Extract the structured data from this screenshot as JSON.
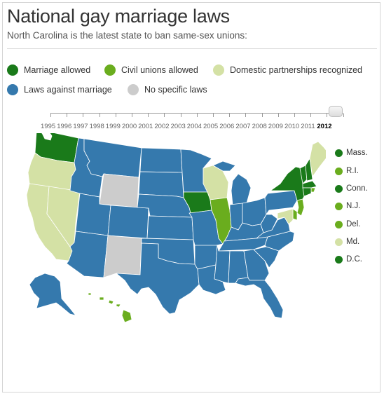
{
  "header": {
    "title": "National gay marriage laws",
    "subtitle": "North Carolina is the latest state to ban same-sex unions:"
  },
  "colors": {
    "marriage": "#1a7a1a",
    "civil": "#6aad1e",
    "domestic": "#d4e1a5",
    "against": "#3579ad",
    "none": "#cccccc"
  },
  "legend": [
    {
      "label": "Marriage allowed",
      "category": "marriage"
    },
    {
      "label": "Civil unions allowed",
      "category": "civil"
    },
    {
      "label": "Domestic partnerships recognized",
      "category": "domestic"
    },
    {
      "label": "Laws against marriage",
      "category": "against"
    },
    {
      "label": "No specific laws",
      "category": "none"
    }
  ],
  "timeline": {
    "years": [
      "1995",
      "1996",
      "1997",
      "1998",
      "1999",
      "2000",
      "2001",
      "2002",
      "2003",
      "2004",
      "2005",
      "2006",
      "2007",
      "2008",
      "2009",
      "2010",
      "2011",
      "2012"
    ],
    "selected": "2012"
  },
  "east_states": [
    {
      "label": "Mass.",
      "category": "marriage"
    },
    {
      "label": "R.I.",
      "category": "civil"
    },
    {
      "label": "Conn.",
      "category": "marriage"
    },
    {
      "label": "N.J.",
      "category": "civil"
    },
    {
      "label": "Del.",
      "category": "civil"
    },
    {
      "label": "Md.",
      "category": "domestic"
    },
    {
      "label": "D.C.",
      "category": "marriage"
    }
  ],
  "map_regions": [
    {
      "name": "washington",
      "category": "marriage"
    },
    {
      "name": "oregon",
      "category": "domestic"
    },
    {
      "name": "california",
      "category": "domestic"
    },
    {
      "name": "nevada",
      "category": "domestic"
    },
    {
      "name": "idaho",
      "category": "against"
    },
    {
      "name": "montana",
      "category": "against"
    },
    {
      "name": "wyoming",
      "category": "none"
    },
    {
      "name": "utah",
      "category": "against"
    },
    {
      "name": "arizona",
      "category": "against"
    },
    {
      "name": "colorado",
      "category": "against"
    },
    {
      "name": "new-mexico",
      "category": "none"
    },
    {
      "name": "north-dakota",
      "category": "against"
    },
    {
      "name": "south-dakota",
      "category": "against"
    },
    {
      "name": "nebraska",
      "category": "against"
    },
    {
      "name": "kansas",
      "category": "against"
    },
    {
      "name": "oklahoma",
      "category": "against"
    },
    {
      "name": "texas",
      "category": "against"
    },
    {
      "name": "minnesota",
      "category": "against"
    },
    {
      "name": "iowa",
      "category": "marriage"
    },
    {
      "name": "missouri",
      "category": "against"
    },
    {
      "name": "arkansas",
      "category": "against"
    },
    {
      "name": "louisiana",
      "category": "against"
    },
    {
      "name": "wisconsin",
      "category": "domestic"
    },
    {
      "name": "illinois",
      "category": "civil"
    },
    {
      "name": "michigan",
      "category": "against"
    },
    {
      "name": "indiana",
      "category": "against"
    },
    {
      "name": "ohio",
      "category": "against"
    },
    {
      "name": "kentucky",
      "category": "against"
    },
    {
      "name": "tennessee",
      "category": "against"
    },
    {
      "name": "mississippi",
      "category": "against"
    },
    {
      "name": "alabama",
      "category": "against"
    },
    {
      "name": "georgia",
      "category": "against"
    },
    {
      "name": "florida",
      "category": "against"
    },
    {
      "name": "south-carolina",
      "category": "against"
    },
    {
      "name": "north-carolina",
      "category": "against"
    },
    {
      "name": "virginia",
      "category": "against"
    },
    {
      "name": "west-virginia",
      "category": "against"
    },
    {
      "name": "pennsylvania",
      "category": "against"
    },
    {
      "name": "new-york",
      "category": "marriage"
    },
    {
      "name": "vermont",
      "category": "marriage"
    },
    {
      "name": "new-hampshire",
      "category": "marriage"
    },
    {
      "name": "maine",
      "category": "domestic"
    },
    {
      "name": "massachusetts",
      "category": "marriage"
    },
    {
      "name": "rhode-island",
      "category": "civil"
    },
    {
      "name": "connecticut",
      "category": "marriage"
    },
    {
      "name": "new-jersey",
      "category": "civil"
    },
    {
      "name": "delaware",
      "category": "civil"
    },
    {
      "name": "maryland",
      "category": "domestic"
    },
    {
      "name": "alaska",
      "category": "against"
    },
    {
      "name": "hawaii",
      "category": "civil"
    }
  ]
}
